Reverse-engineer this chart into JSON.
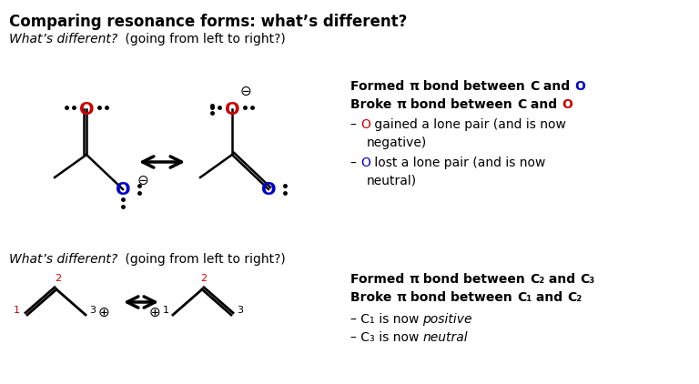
{
  "bg_color": "#ffffff",
  "text_color": "#000000",
  "red_color": "#cc0000",
  "blue_color": "#0000cc",
  "title": "Comparing resonance forms: what’s different?",
  "subtitle1": "What’s different? (going from left to right?)",
  "subtitle2": "What’s different? (going from left to right?)"
}
